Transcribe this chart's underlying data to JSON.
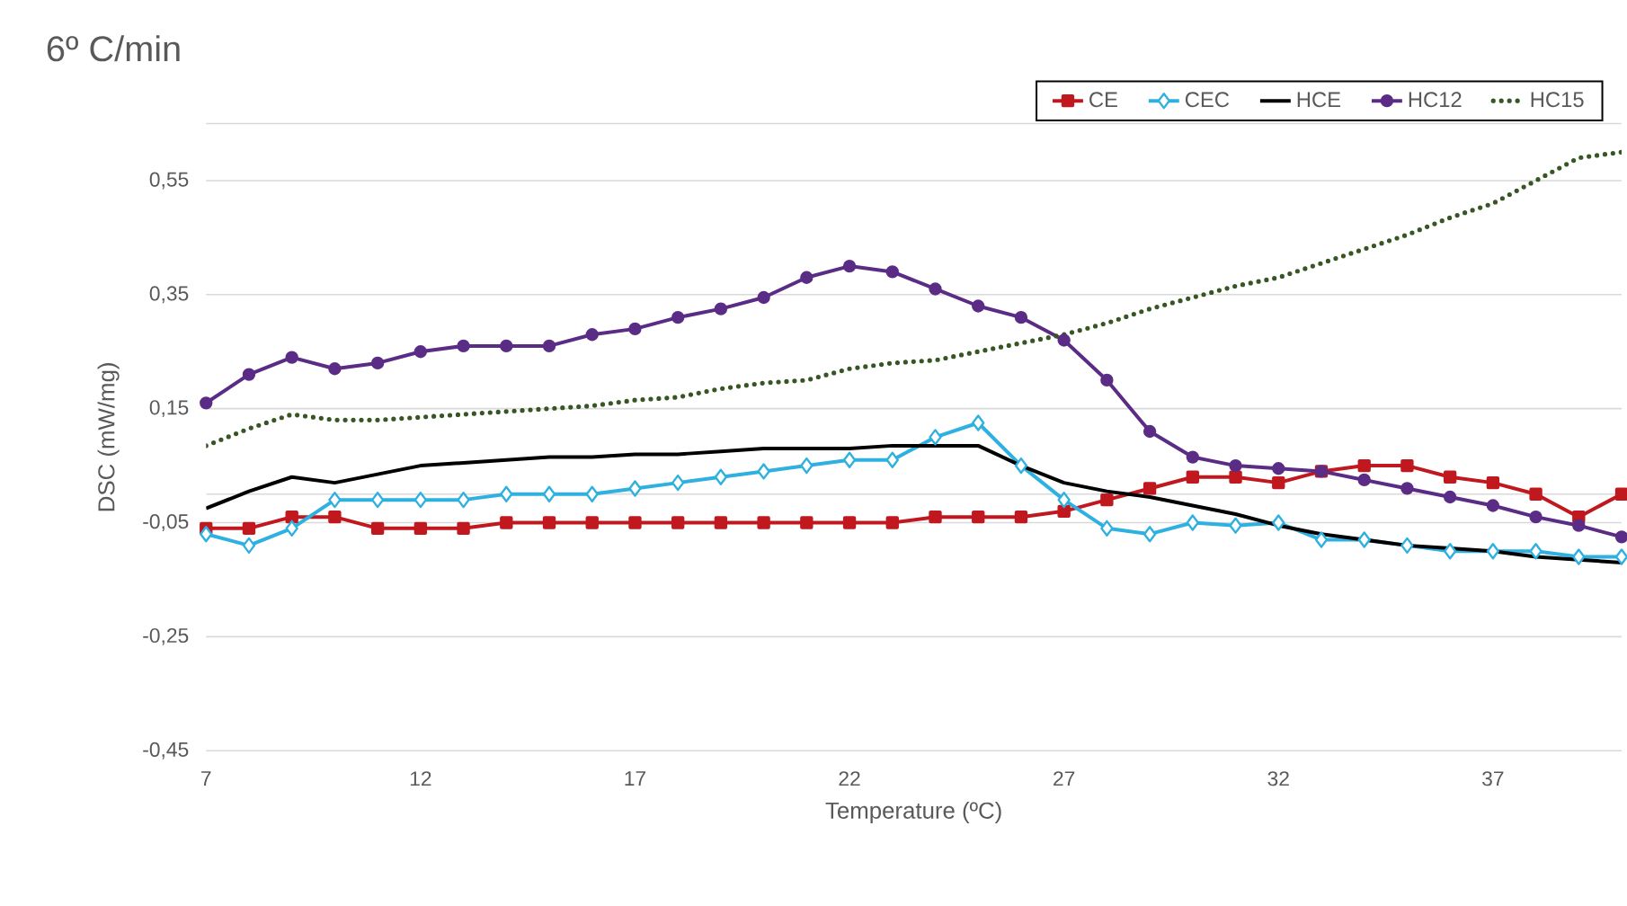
{
  "chart_data": {
    "type": "line",
    "title": "6º C/min",
    "xlabel": "Temperature (ºC)",
    "ylabel": "DSC (mW/mg)",
    "x": [
      7,
      8,
      9,
      10,
      11,
      12,
      13,
      14,
      15,
      16,
      17,
      18,
      19,
      20,
      21,
      22,
      23,
      24,
      25,
      26,
      27,
      28,
      29,
      30,
      31,
      32,
      33,
      34,
      35,
      36,
      37,
      38,
      39,
      40
    ],
    "xlim": [
      7,
      40
    ],
    "xticks": [
      7,
      12,
      17,
      22,
      27,
      32,
      37
    ],
    "ylim": [
      -0.45,
      0.65
    ],
    "yticks": [
      {
        "value": -0.45,
        "label": "-0,45"
      },
      {
        "value": -0.25,
        "label": "-0,25"
      },
      {
        "value": -0.05,
        "label": "-0,05"
      },
      {
        "value": 0.15,
        "label": "0,15"
      },
      {
        "value": 0.35,
        "label": "0,35"
      },
      {
        "value": 0.55,
        "label": "0,55"
      },
      {
        "value": 0.65,
        "label": null
      }
    ],
    "grid": "y",
    "legend": "top",
    "ref_lines": [
      {
        "axis": "y",
        "value": 0,
        "color": "#d9d9d9"
      }
    ],
    "series": [
      {
        "name": "CE",
        "color": "#c0181e",
        "marker": "square",
        "line_style": "solid",
        "values": [
          -0.06,
          -0.06,
          -0.04,
          -0.04,
          -0.06,
          -0.06,
          -0.06,
          -0.05,
          -0.05,
          -0.05,
          -0.05,
          -0.05,
          -0.05,
          -0.05,
          -0.05,
          -0.05,
          -0.05,
          -0.04,
          -0.04,
          -0.04,
          -0.03,
          -0.01,
          0.01,
          0.03,
          0.03,
          0.02,
          0.04,
          0.05,
          0.05,
          0.03,
          0.02,
          0.0,
          -0.04,
          0.0
        ]
      },
      {
        "name": "CEC",
        "color": "#2eb0e0",
        "marker": "diamond",
        "line_style": "solid",
        "values": [
          -0.07,
          -0.09,
          -0.06,
          -0.01,
          -0.01,
          -0.01,
          -0.01,
          0.0,
          0.0,
          0.0,
          0.01,
          0.02,
          0.03,
          0.04,
          0.05,
          0.06,
          0.06,
          0.1,
          0.125,
          0.05,
          -0.01,
          -0.06,
          -0.07,
          -0.05,
          -0.055,
          -0.05,
          -0.08,
          -0.08,
          -0.09,
          -0.1,
          -0.1,
          -0.1,
          -0.11,
          -0.11
        ]
      },
      {
        "name": "HCE",
        "color": "#000000",
        "marker": "none",
        "line_style": "solid",
        "values": [
          -0.025,
          0.005,
          0.03,
          0.02,
          0.035,
          0.05,
          0.055,
          0.06,
          0.065,
          0.065,
          0.07,
          0.07,
          0.075,
          0.08,
          0.08,
          0.08,
          0.085,
          0.085,
          0.085,
          0.05,
          0.02,
          0.005,
          -0.005,
          -0.02,
          -0.035,
          -0.055,
          -0.07,
          -0.08,
          -0.09,
          -0.095,
          -0.1,
          -0.11,
          -0.115,
          -0.12
        ]
      },
      {
        "name": "HC12",
        "color": "#5b2c86",
        "marker": "circle",
        "line_style": "solid",
        "values": [
          0.16,
          0.21,
          0.24,
          0.22,
          0.23,
          0.25,
          0.26,
          0.26,
          0.26,
          0.28,
          0.29,
          0.31,
          0.325,
          0.345,
          0.38,
          0.4,
          0.39,
          0.36,
          0.33,
          0.31,
          0.27,
          0.2,
          0.11,
          0.065,
          0.05,
          0.045,
          0.04,
          0.025,
          0.01,
          -0.005,
          -0.02,
          -0.04,
          -0.055,
          -0.075
        ]
      },
      {
        "name": "HC15",
        "color": "#375623",
        "marker": "none",
        "line_style": "dotted",
        "values": [
          0.085,
          0.115,
          0.14,
          0.13,
          0.13,
          0.135,
          0.14,
          0.145,
          0.15,
          0.155,
          0.165,
          0.17,
          0.185,
          0.195,
          0.2,
          0.22,
          0.23,
          0.235,
          0.25,
          0.265,
          0.28,
          0.3,
          0.325,
          0.345,
          0.365,
          0.38,
          0.405,
          0.43,
          0.455,
          0.485,
          0.51,
          0.55,
          0.59,
          0.6
        ]
      }
    ]
  }
}
